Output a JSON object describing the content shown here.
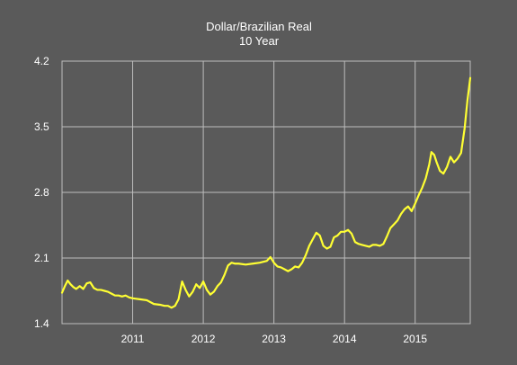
{
  "chart_data": {
    "type": "line",
    "title": "Dollar/Brazilian Real",
    "subtitle": "10 Year",
    "xlabel": "",
    "ylabel": "",
    "xlim": [
      2010.0,
      2015.78
    ],
    "ylim": [
      1.4,
      4.2
    ],
    "x_ticks": [
      "2011",
      "2012",
      "2013",
      "2014",
      "2015"
    ],
    "y_ticks": [
      "1.4",
      "2.1",
      "2.8",
      "3.5",
      "4.2"
    ],
    "grid": true,
    "legend": "none",
    "colors": {
      "background": "#5a5a5a",
      "grid": "#bdbdbd",
      "line": "#ffff33",
      "text": "#ffffff"
    },
    "series": [
      {
        "color": "#ffff33",
        "x": [
          2010.0,
          2010.04,
          2010.08,
          2010.12,
          2010.16,
          2010.2,
          2010.25,
          2010.3,
          2010.35,
          2010.4,
          2010.45,
          2010.5,
          2010.55,
          2010.6,
          2010.65,
          2010.7,
          2010.75,
          2010.8,
          2010.85,
          2010.9,
          2010.95,
          2011.0,
          2011.1,
          2011.2,
          2011.3,
          2011.4,
          2011.45,
          2011.5,
          2011.55,
          2011.6,
          2011.65,
          2011.7,
          2011.75,
          2011.8,
          2011.85,
          2011.9,
          2011.95,
          2012.0,
          2012.05,
          2012.1,
          2012.15,
          2012.2,
          2012.25,
          2012.3,
          2012.35,
          2012.4,
          2012.45,
          2012.5,
          2012.6,
          2012.7,
          2012.8,
          2012.9,
          2012.95,
          2013.0,
          2013.05,
          2013.1,
          2013.15,
          2013.2,
          2013.25,
          2013.3,
          2013.35,
          2013.4,
          2013.45,
          2013.5,
          2013.55,
          2013.6,
          2013.65,
          2013.7,
          2013.75,
          2013.8,
          2013.85,
          2013.9,
          2013.95,
          2014.0,
          2014.05,
          2014.1,
          2014.15,
          2014.2,
          2014.25,
          2014.3,
          2014.35,
          2014.4,
          2014.45,
          2014.5,
          2014.55,
          2014.6,
          2014.65,
          2014.7,
          2014.75,
          2014.8,
          2014.85,
          2014.9,
          2014.95,
          2015.0,
          2015.05,
          2015.1,
          2015.15,
          2015.2,
          2015.23,
          2015.27,
          2015.3,
          2015.35,
          2015.4,
          2015.45,
          2015.5,
          2015.55,
          2015.6,
          2015.65,
          2015.7,
          2015.74,
          2015.78
        ],
        "y": [
          1.73,
          1.8,
          1.86,
          1.82,
          1.79,
          1.77,
          1.8,
          1.77,
          1.83,
          1.84,
          1.78,
          1.76,
          1.76,
          1.75,
          1.74,
          1.72,
          1.7,
          1.7,
          1.69,
          1.7,
          1.68,
          1.67,
          1.66,
          1.65,
          1.61,
          1.6,
          1.59,
          1.59,
          1.57,
          1.59,
          1.66,
          1.85,
          1.76,
          1.69,
          1.74,
          1.82,
          1.78,
          1.85,
          1.76,
          1.71,
          1.74,
          1.8,
          1.84,
          1.92,
          2.02,
          2.05,
          2.04,
          2.04,
          2.03,
          2.04,
          2.05,
          2.07,
          2.11,
          2.05,
          2.01,
          2.0,
          1.98,
          1.96,
          1.98,
          2.01,
          2.0,
          2.05,
          2.13,
          2.23,
          2.3,
          2.37,
          2.34,
          2.23,
          2.2,
          2.22,
          2.32,
          2.34,
          2.38,
          2.38,
          2.4,
          2.36,
          2.27,
          2.25,
          2.24,
          2.23,
          2.22,
          2.24,
          2.24,
          2.23,
          2.25,
          2.33,
          2.42,
          2.46,
          2.5,
          2.57,
          2.62,
          2.65,
          2.6,
          2.68,
          2.77,
          2.85,
          2.95,
          3.1,
          3.23,
          3.2,
          3.13,
          3.03,
          3.0,
          3.07,
          3.18,
          3.12,
          3.16,
          3.22,
          3.48,
          3.78,
          4.02
        ]
      }
    ]
  }
}
